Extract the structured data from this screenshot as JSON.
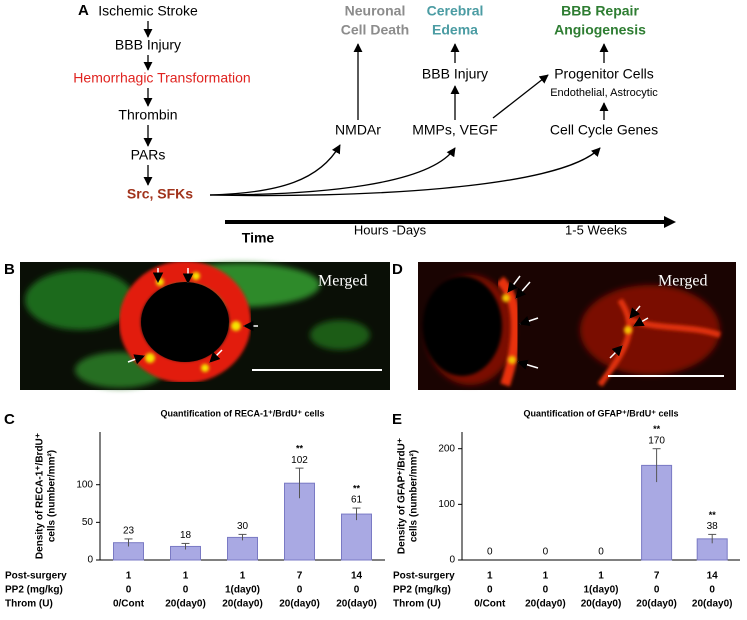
{
  "panel_labels": [
    "A",
    "B",
    "C",
    "D",
    "E"
  ],
  "diagram": {
    "left_chain": [
      "Ischemic Stroke",
      "BBB Injury",
      "Hemorrhagic Transformation",
      "Thrombin",
      "PARs",
      "Src, SFKs"
    ],
    "columns": [
      {
        "outcome": [
          "Neuronal",
          "Cell Death"
        ],
        "steps": [
          "NMDAr"
        ]
      },
      {
        "outcome": [
          "Cerebral",
          "Edema"
        ],
        "steps": [
          "MMPs, VEGF",
          "BBB Injury"
        ]
      },
      {
        "outcome": [
          "BBB Repair",
          "Angiogenesis"
        ],
        "steps": [
          "Cell Cycle Genes",
          "Progenitor Cells"
        ],
        "note": "Endothelial, Astrocytic"
      }
    ],
    "time_axis": {
      "label": "Time",
      "marks": [
        "Hours -Days",
        "1-5 Weeks"
      ]
    }
  },
  "micrographs": [
    {
      "label": "Merged"
    },
    {
      "label": "Merged"
    }
  ],
  "chart_data": [
    {
      "type": "bar",
      "title": "Quantification of RECA-1⁺/BrdU⁺ cells",
      "y_label": [
        "Density of RECA-1⁺/BrdU⁺",
        "cells (number/mm²)"
      ],
      "values": [
        23,
        18,
        30,
        102,
        61
      ],
      "errors": [
        5,
        4,
        4,
        20,
        8
      ],
      "annotations": [
        null,
        null,
        null,
        "**",
        "**"
      ],
      "color": "#a9a9e3",
      "ylim": [
        0,
        170
      ],
      "yticks": [
        0,
        50,
        100
      ],
      "conditions": [
        {
          "label": "Post-surgery",
          "values": [
            "1",
            "1",
            "1",
            "7",
            "14"
          ]
        },
        {
          "label": "PP2 (mg/kg)",
          "values": [
            "0",
            "0",
            "1(day0)",
            "0",
            "0"
          ]
        },
        {
          "label": "Throm (U)",
          "values": [
            "0/Cont",
            "20(day0)",
            "20(day0)",
            "20(day0)",
            "20(day0)"
          ]
        }
      ]
    },
    {
      "type": "bar",
      "title": "Quantification of GFAP⁺/BrdU⁺ cells",
      "y_label": [
        "Density of GFAP⁺/BrdU⁺",
        "cells (number/mm²)"
      ],
      "values": [
        0,
        0,
        0,
        170,
        38
      ],
      "errors": [
        0,
        0,
        0,
        30,
        8
      ],
      "annotations": [
        null,
        null,
        null,
        "**",
        "**"
      ],
      "color": "#a9a9e3",
      "ylim": [
        0,
        230
      ],
      "yticks": [
        0,
        100,
        200
      ],
      "conditions": [
        {
          "label": "Post-surgery",
          "values": [
            "1",
            "1",
            "1",
            "7",
            "14"
          ]
        },
        {
          "label": "PP2 (mg/kg)",
          "values": [
            "0",
            "0",
            "1(day0)",
            "0",
            "0"
          ]
        },
        {
          "label": "Throm (U)",
          "values": [
            "0/Cont",
            "20(day0)",
            "20(day0)",
            "20(day0)",
            "20(day0)"
          ]
        }
      ]
    }
  ]
}
